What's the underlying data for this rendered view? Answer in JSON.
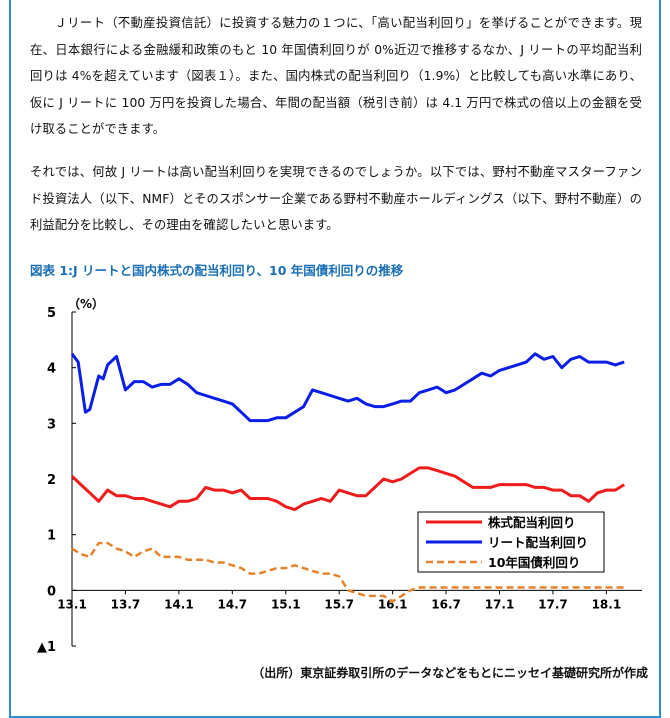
{
  "paragraphs": [
    "Ｊリート（不動産投資信託）に投資する魅力の１つに、「高い配当利回り」を挙げることができます。現在、日本銀行による金融緩和政策のもと 10 年国債利回りが 0%近辺で推移するなか、J リートの平均配当利回りは 4%を超えています（図表１）。また、国内株式の配当利回り（1.9%）と比較しても高い水準にあり、仮に J リートに 100 万円を投資した場合、年間の配当額（税引き前）は 4.1 万円で株式の倍以上の金額を受け取ることができます。",
    "それでは、何故 J リートは高い配当利回りを実現できるのでしょうか。以下では、野村不動産マスターファンド投資法人（以下、NMF）とそのスポンサー企業である野村不動産ホールディングス（以下、野村不動産）の利益配分を比較し、その理由を確認したいと思います。"
  ],
  "figure_title": "図表 1:J リートと国内株式の配当利回り、10 年国債利回りの推移",
  "source_note": "（出所）東京証券取引所のデータなどをもとにニッセイ基礎研究所が作成",
  "chart_data": {
    "type": "line",
    "ylabel": "（%）",
    "ylim": [
      -1,
      5
    ],
    "yticks": [
      {
        "value": 5,
        "label": "5"
      },
      {
        "value": 4,
        "label": "4"
      },
      {
        "value": 3,
        "label": "3"
      },
      {
        "value": 2,
        "label": "2"
      },
      {
        "value": 1,
        "label": "1"
      },
      {
        "value": 0,
        "label": "0"
      },
      {
        "value": -1,
        "label": "▲1"
      }
    ],
    "xlim": [
      0,
      64
    ],
    "xticks": [
      {
        "value": 0,
        "label": "13.1"
      },
      {
        "value": 6,
        "label": "13.7"
      },
      {
        "value": 12,
        "label": "14.1"
      },
      {
        "value": 18,
        "label": "14.7"
      },
      {
        "value": 24,
        "label": "15.1"
      },
      {
        "value": 30,
        "label": "15.7"
      },
      {
        "value": 36,
        "label": "16.1"
      },
      {
        "value": 42,
        "label": "16.7"
      },
      {
        "value": 48,
        "label": "17.1"
      },
      {
        "value": 54,
        "label": "17.7"
      },
      {
        "value": 60,
        "label": "18.1"
      }
    ],
    "legend_position": "bottom-right",
    "series": [
      {
        "name": "株式配当利回り",
        "color": "#ee1c1c",
        "dash": "solid",
        "points": [
          [
            0,
            2.05
          ],
          [
            1,
            1.9
          ],
          [
            2,
            1.75
          ],
          [
            3,
            1.6
          ],
          [
            4,
            1.8
          ],
          [
            5,
            1.7
          ],
          [
            6,
            1.7
          ],
          [
            7,
            1.65
          ],
          [
            8,
            1.65
          ],
          [
            9,
            1.6
          ],
          [
            10,
            1.55
          ],
          [
            11,
            1.5
          ],
          [
            12,
            1.6
          ],
          [
            13,
            1.6
          ],
          [
            14,
            1.65
          ],
          [
            15,
            1.85
          ],
          [
            16,
            1.8
          ],
          [
            17,
            1.8
          ],
          [
            18,
            1.75
          ],
          [
            19,
            1.8
          ],
          [
            20,
            1.65
          ],
          [
            21,
            1.65
          ],
          [
            22,
            1.65
          ],
          [
            23,
            1.6
          ],
          [
            24,
            1.5
          ],
          [
            25,
            1.45
          ],
          [
            26,
            1.55
          ],
          [
            27,
            1.6
          ],
          [
            28,
            1.65
          ],
          [
            29,
            1.6
          ],
          [
            30,
            1.8
          ],
          [
            31,
            1.75
          ],
          [
            32,
            1.7
          ],
          [
            33,
            1.7
          ],
          [
            34,
            1.85
          ],
          [
            35,
            2.0
          ],
          [
            36,
            1.95
          ],
          [
            37,
            2.0
          ],
          [
            38,
            2.1
          ],
          [
            39,
            2.2
          ],
          [
            40,
            2.2
          ],
          [
            41,
            2.15
          ],
          [
            42,
            2.1
          ],
          [
            43,
            2.05
          ],
          [
            44,
            1.95
          ],
          [
            45,
            1.85
          ],
          [
            46,
            1.85
          ],
          [
            47,
            1.85
          ],
          [
            48,
            1.9
          ],
          [
            49,
            1.9
          ],
          [
            50,
            1.9
          ],
          [
            51,
            1.9
          ],
          [
            52,
            1.85
          ],
          [
            53,
            1.85
          ],
          [
            54,
            1.8
          ],
          [
            55,
            1.8
          ],
          [
            56,
            1.7
          ],
          [
            57,
            1.7
          ],
          [
            58,
            1.6
          ],
          [
            59,
            1.75
          ],
          [
            60,
            1.8
          ],
          [
            61,
            1.8
          ],
          [
            62,
            1.9
          ]
        ]
      },
      {
        "name": "リート配当利回り",
        "color": "#0a1ee6",
        "dash": "solid",
        "points": [
          [
            0,
            4.25
          ],
          [
            0.7,
            4.1
          ],
          [
            1.5,
            3.2
          ],
          [
            2,
            3.25
          ],
          [
            3,
            3.85
          ],
          [
            3.5,
            3.8
          ],
          [
            4,
            4.05
          ],
          [
            5,
            4.2
          ],
          [
            6,
            3.6
          ],
          [
            7,
            3.75
          ],
          [
            8,
            3.75
          ],
          [
            9,
            3.65
          ],
          [
            10,
            3.7
          ],
          [
            11,
            3.7
          ],
          [
            12,
            3.8
          ],
          [
            13,
            3.7
          ],
          [
            14,
            3.55
          ],
          [
            15,
            3.5
          ],
          [
            16,
            3.45
          ],
          [
            17,
            3.4
          ],
          [
            18,
            3.35
          ],
          [
            19,
            3.2
          ],
          [
            20,
            3.05
          ],
          [
            21,
            3.05
          ],
          [
            22,
            3.05
          ],
          [
            23,
            3.1
          ],
          [
            24,
            3.1
          ],
          [
            25,
            3.2
          ],
          [
            26,
            3.3
          ],
          [
            27,
            3.6
          ],
          [
            28,
            3.55
          ],
          [
            29,
            3.5
          ],
          [
            30,
            3.45
          ],
          [
            31,
            3.4
          ],
          [
            32,
            3.45
          ],
          [
            33,
            3.35
          ],
          [
            34,
            3.3
          ],
          [
            35,
            3.3
          ],
          [
            36,
            3.35
          ],
          [
            37,
            3.4
          ],
          [
            38,
            3.4
          ],
          [
            39,
            3.55
          ],
          [
            40,
            3.6
          ],
          [
            41,
            3.65
          ],
          [
            42,
            3.55
          ],
          [
            43,
            3.6
          ],
          [
            44,
            3.7
          ],
          [
            45,
            3.8
          ],
          [
            46,
            3.9
          ],
          [
            47,
            3.85
          ],
          [
            48,
            3.95
          ],
          [
            49,
            4.0
          ],
          [
            50,
            4.05
          ],
          [
            51,
            4.1
          ],
          [
            52,
            4.25
          ],
          [
            53,
            4.15
          ],
          [
            54,
            4.2
          ],
          [
            55,
            4.0
          ],
          [
            56,
            4.15
          ],
          [
            57,
            4.2
          ],
          [
            58,
            4.1
          ],
          [
            59,
            4.1
          ],
          [
            60,
            4.1
          ],
          [
            61,
            4.05
          ],
          [
            62,
            4.1
          ]
        ]
      },
      {
        "name": "10年国債利回り",
        "color": "#e8822a",
        "dash": "dashed",
        "points": [
          [
            0,
            0.75
          ],
          [
            1,
            0.65
          ],
          [
            2,
            0.6
          ],
          [
            3,
            0.85
          ],
          [
            4,
            0.85
          ],
          [
            5,
            0.75
          ],
          [
            6,
            0.7
          ],
          [
            7,
            0.6
          ],
          [
            8,
            0.7
          ],
          [
            9,
            0.75
          ],
          [
            10,
            0.6
          ],
          [
            11,
            0.6
          ],
          [
            12,
            0.6
          ],
          [
            13,
            0.55
          ],
          [
            14,
            0.55
          ],
          [
            15,
            0.55
          ],
          [
            16,
            0.5
          ],
          [
            17,
            0.5
          ],
          [
            18,
            0.45
          ],
          [
            19,
            0.4
          ],
          [
            20,
            0.3
          ],
          [
            21,
            0.3
          ],
          [
            22,
            0.35
          ],
          [
            23,
            0.4
          ],
          [
            24,
            0.4
          ],
          [
            25,
            0.45
          ],
          [
            26,
            0.4
          ],
          [
            27,
            0.35
          ],
          [
            28,
            0.3
          ],
          [
            29,
            0.3
          ],
          [
            30,
            0.25
          ],
          [
            31,
            0.0
          ],
          [
            32,
            -0.05
          ],
          [
            33,
            -0.1
          ],
          [
            34,
            -0.1
          ],
          [
            35,
            -0.1
          ],
          [
            36,
            -0.2
          ],
          [
            37,
            -0.1
          ],
          [
            38,
            0.0
          ],
          [
            39,
            0.05
          ],
          [
            40,
            0.05
          ],
          [
            41,
            0.05
          ],
          [
            42,
            0.05
          ],
          [
            43,
            0.05
          ],
          [
            44,
            0.05
          ],
          [
            45,
            0.05
          ],
          [
            46,
            0.05
          ],
          [
            47,
            0.05
          ],
          [
            48,
            0.05
          ],
          [
            49,
            0.05
          ],
          [
            50,
            0.05
          ],
          [
            51,
            0.05
          ],
          [
            52,
            0.05
          ],
          [
            53,
            0.05
          ],
          [
            54,
            0.05
          ],
          [
            55,
            0.05
          ],
          [
            56,
            0.05
          ],
          [
            57,
            0.05
          ],
          [
            58,
            0.05
          ],
          [
            59,
            0.05
          ],
          [
            60,
            0.05
          ],
          [
            61,
            0.05
          ],
          [
            62,
            0.05
          ]
        ]
      }
    ]
  }
}
